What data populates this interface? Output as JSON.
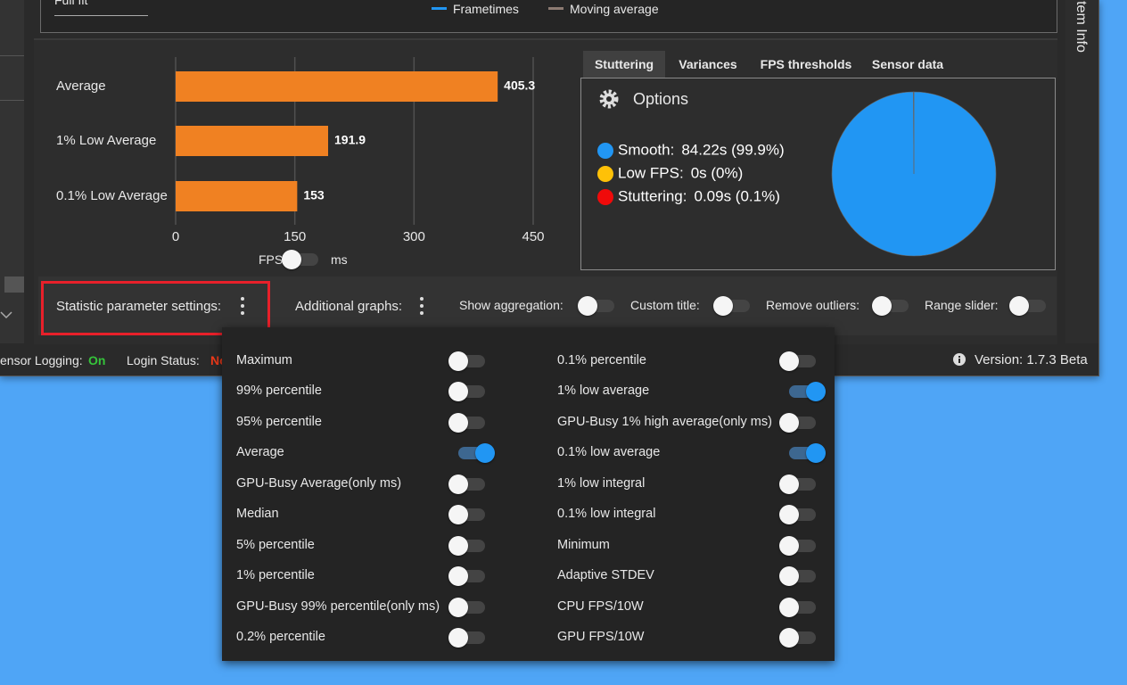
{
  "top_panel": {
    "dropdown_text": "Full fit",
    "legend": [
      {
        "name": "Frametimes",
        "color": "#2196f3"
      },
      {
        "name": "Moving average",
        "color": "#8d7b72"
      }
    ]
  },
  "side_tab": "tem Info",
  "chart_data": [
    {
      "type": "bar",
      "orientation": "horizontal",
      "categories": [
        "Average",
        "1% Low Average",
        "0.1% Low Average"
      ],
      "values": [
        405.3,
        191.9,
        153
      ],
      "color": "#f08122",
      "xlim": [
        0,
        450
      ],
      "xticks": [
        0,
        150,
        300,
        450
      ],
      "grid": true
    },
    {
      "type": "pie",
      "categories": [
        "Smooth:",
        "Low FPS:",
        "Stuttering:"
      ],
      "values": [
        99.9,
        0,
        0.1
      ],
      "value_labels": [
        "84.22s (99.9%)",
        "0s (0%)",
        "0.09s (0.1%)"
      ],
      "colors": [
        "#2196f3",
        "#ffc107",
        "#f00a0a"
      ]
    }
  ],
  "unit_toggle": {
    "left": "FPS",
    "right": "ms",
    "on": false
  },
  "tabs": {
    "items": [
      "Stuttering",
      "Variances",
      "FPS thresholds",
      "Sensor data"
    ],
    "selected": 0
  },
  "options_label": "Options",
  "settings_bar": {
    "statistic": "Statistic parameter settings:",
    "additional": "Additional graphs:",
    "toggles": [
      {
        "label": "Show aggregation:",
        "on": false
      },
      {
        "label": "Custom title:",
        "on": false
      },
      {
        "label": "Remove outliers:",
        "on": false
      },
      {
        "label": "Range slider:",
        "on": false
      }
    ]
  },
  "status_bar": {
    "sensor_logging": "ensor Logging:",
    "sensor_value": "On",
    "login": "Login Status:",
    "login_value": "No",
    "version": "Version: 1.7.3 Beta"
  },
  "parameter_menu": {
    "columns": [
      [
        {
          "label": "Maximum",
          "on": false
        },
        {
          "label": "99% percentile",
          "on": false
        },
        {
          "label": "95% percentile",
          "on": false
        },
        {
          "label": "Average",
          "on": true
        },
        {
          "label": "GPU-Busy Average(only ms)",
          "on": false
        },
        {
          "label": "Median",
          "on": false
        },
        {
          "label": "5% percentile",
          "on": false
        },
        {
          "label": "1% percentile",
          "on": false
        },
        {
          "label": "GPU-Busy 99% percentile(only ms)",
          "on": false
        },
        {
          "label": "0.2% percentile",
          "on": false
        }
      ],
      [
        {
          "label": "0.1% percentile",
          "on": false
        },
        {
          "label": "1% low average",
          "on": true
        },
        {
          "label": "GPU-Busy 1% high average(only ms)",
          "on": false
        },
        {
          "label": "0.1% low average",
          "on": true
        },
        {
          "label": "1% low integral",
          "on": false
        },
        {
          "label": "0.1% low integral",
          "on": false
        },
        {
          "label": "Minimum",
          "on": false
        },
        {
          "label": "Adaptive STDEV",
          "on": false
        },
        {
          "label": "CPU FPS/10W",
          "on": false
        },
        {
          "label": "GPU FPS/10W",
          "on": false
        }
      ]
    ]
  }
}
